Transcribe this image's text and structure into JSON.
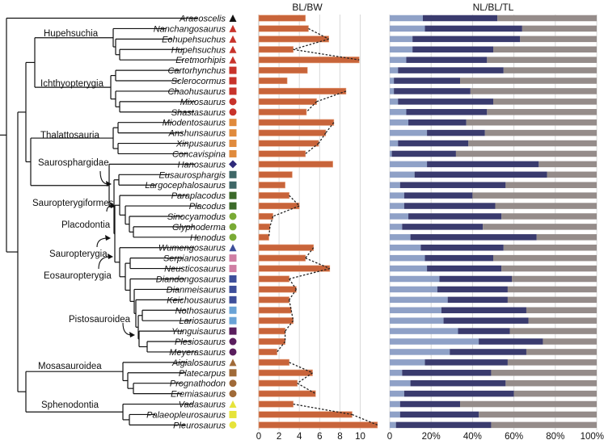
{
  "chart_data": [
    {
      "type": "bar",
      "title": "BL/BW",
      "xlabel": "",
      "ylabel": "",
      "xlim": [
        0,
        11.8
      ],
      "xticks": [
        "0",
        "2",
        "4",
        "6",
        "8",
        "10"
      ],
      "grid": true,
      "bar_color": "#c8643a",
      "connector_style": "dotted line linking sister taxa",
      "categories": [
        "Araeoscelis",
        "Nanchangosaurus",
        "Eohupehsuchus",
        "Hupehsuchus",
        "Eretmorhipis",
        "Cartorhynchus",
        "Sclerocormus",
        "Chaohusaurus",
        "Mixosaurus",
        "Shastasaurus",
        "Miodentosaurus",
        "Anshunsaurus",
        "Xinpusaurus",
        "Concavispina",
        "Hanosaurus",
        "Eusaurosphargis",
        "Largocephalosaurus",
        "Paraplacodus",
        "Placodus",
        "Sinocyamodus",
        "Glyphoderma",
        "Henodus",
        "Wumengosaurus",
        "Serpianosaurus",
        "Neusticosaurus",
        "Diandongosaurus",
        "Dianmeisaurus",
        "Keichousaurus",
        "Nothosaurus",
        "Lariosaurus",
        "Yunguisaurus",
        "Plesiosaurus",
        "Meyerasaurus",
        "Aigialosaurus",
        "Platecarpus",
        "Prognathodon",
        "Eremiasaurus",
        "Vadasaurus",
        "Palaeopleurosaurus",
        "Pleurosaurus"
      ],
      "values": [
        4.6,
        4.9,
        6.9,
        3.4,
        9.9,
        4.8,
        2.8,
        8.6,
        5.7,
        4.7,
        7.4,
        6.6,
        5.9,
        4.6,
        7.3,
        3.3,
        2.6,
        3.0,
        4.0,
        1.4,
        1.1,
        1.0,
        5.4,
        4.6,
        7.0,
        3.0,
        3.7,
        3.0,
        3.2,
        3.4,
        2.6,
        2.6,
        1.8,
        3.0,
        5.3,
        3.8,
        5.6,
        3.4,
        9.2,
        11.7
      ],
      "connectors": [
        [
          1,
          2
        ],
        [
          2,
          3
        ],
        [
          3,
          4
        ],
        [
          7,
          8
        ],
        [
          8,
          9
        ],
        [
          10,
          11
        ],
        [
          11,
          12
        ],
        [
          12,
          13
        ],
        [
          17,
          18
        ],
        [
          18,
          19
        ],
        [
          19,
          20
        ],
        [
          20,
          21
        ],
        [
          22,
          23
        ],
        [
          23,
          24
        ],
        [
          24,
          25
        ],
        [
          25,
          26
        ],
        [
          26,
          27
        ],
        [
          27,
          28
        ],
        [
          28,
          29
        ],
        [
          29,
          30
        ],
        [
          30,
          31
        ],
        [
          31,
          32
        ],
        [
          33,
          34
        ],
        [
          34,
          35
        ],
        [
          35,
          36
        ],
        [
          37,
          38
        ],
        [
          38,
          39
        ]
      ]
    },
    {
      "type": "bar",
      "stacked": true,
      "horizontal": true,
      "title": "NL/BL/TL",
      "xlim": [
        0,
        100
      ],
      "xticks": [
        "0",
        "20%",
        "40%",
        "60%",
        "80%",
        "100%"
      ],
      "grid": true,
      "categories_ref": "same as BL/BW",
      "series": [
        {
          "name": "NL",
          "color": "#8fa1c7",
          "values": [
            16,
            17,
            11,
            11,
            8,
            4,
            2,
            2,
            4,
            8,
            9,
            18,
            4,
            1,
            18,
            12,
            5,
            7,
            7,
            9,
            6,
            10,
            15,
            17,
            18,
            24,
            23,
            28,
            25,
            26,
            33,
            43,
            29,
            17,
            6,
            10,
            7,
            5,
            5,
            3
          ]
        },
        {
          "name": "BL",
          "color": "#3a3b6e",
          "values": [
            36,
            47,
            52,
            39,
            39,
            51,
            32,
            37,
            46,
            39,
            28,
            28,
            34,
            31,
            54,
            64,
            51,
            33,
            44,
            45,
            39,
            61,
            40,
            33,
            36,
            35,
            34,
            29,
            41,
            41,
            25,
            31,
            37,
            40,
            43,
            46,
            53,
            29,
            38,
            46
          ]
        },
        {
          "name": "TL",
          "color": "#958c8a",
          "values": [
            48,
            36,
            37,
            50,
            53,
            45,
            66,
            61,
            50,
            53,
            63,
            54,
            62,
            68,
            28,
            24,
            44,
            60,
            49,
            46,
            55,
            29,
            45,
            50,
            46,
            41,
            43,
            43,
            34,
            33,
            42,
            26,
            34,
            43,
            51,
            44,
            40,
            66,
            57,
            51
          ]
        }
      ]
    }
  ],
  "taxa": [
    {
      "name": "Araeoscelis",
      "symbol": "triangle",
      "color": "#111111"
    },
    {
      "name": "Nanchangosaurus",
      "symbol": "triangle",
      "color": "#c8332b"
    },
    {
      "name": "Eohupehsuchus",
      "symbol": "triangle",
      "color": "#c8332b"
    },
    {
      "name": "Hupehsuchus",
      "symbol": "triangle",
      "color": "#c8332b"
    },
    {
      "name": "Eretmorhipis",
      "symbol": "triangle",
      "color": "#c8332b"
    },
    {
      "name": "Cartorhynchus",
      "symbol": "square",
      "color": "#c8332b"
    },
    {
      "name": "Sclerocormus",
      "symbol": "square",
      "color": "#c8332b"
    },
    {
      "name": "Chaohusaurus",
      "symbol": "square",
      "color": "#c8332b"
    },
    {
      "name": "Mixosaurus",
      "symbol": "circle",
      "color": "#c8332b"
    },
    {
      "name": "Shastasaurus",
      "symbol": "circle",
      "color": "#c8332b"
    },
    {
      "name": "Miodentosaurus",
      "symbol": "square",
      "color": "#e08a3c"
    },
    {
      "name": "Anshunsaurus",
      "symbol": "square",
      "color": "#e08a3c"
    },
    {
      "name": "Xinpusaurus",
      "symbol": "square",
      "color": "#e08a3c"
    },
    {
      "name": "Concavispina",
      "symbol": "square",
      "color": "#e08a3c"
    },
    {
      "name": "Hanosaurus",
      "symbol": "diamond",
      "color": "#2e2a7a"
    },
    {
      "name": "Eusaurosphargis",
      "symbol": "square",
      "color": "#3f6767"
    },
    {
      "name": "Largocephalosaurus",
      "symbol": "square",
      "color": "#3f6767"
    },
    {
      "name": "Paraplacodus",
      "symbol": "square",
      "color": "#3b6a2a"
    },
    {
      "name": "Placodus",
      "symbol": "square",
      "color": "#3b6a2a"
    },
    {
      "name": "Sinocyamodus",
      "symbol": "circle",
      "color": "#79aa35"
    },
    {
      "name": "Glyphoderma",
      "symbol": "circle",
      "color": "#79aa35"
    },
    {
      "name": "Henodus",
      "symbol": "circle",
      "color": "#79aa35"
    },
    {
      "name": "Wumengosaurus",
      "symbol": "triangle",
      "color": "#3e4f9a"
    },
    {
      "name": "Serpianosaurus",
      "symbol": "square",
      "color": "#cf7ea3"
    },
    {
      "name": "Neusticosaurus",
      "symbol": "square",
      "color": "#cf7ea3"
    },
    {
      "name": "Diandongosaurus",
      "symbol": "square",
      "color": "#3e4f9a"
    },
    {
      "name": "Dianmeisaurus",
      "symbol": "square",
      "color": "#3e4f9a"
    },
    {
      "name": "Keichousaurus",
      "symbol": "square",
      "color": "#3e4f9a"
    },
    {
      "name": "Nothosaurus",
      "symbol": "square",
      "color": "#6aa3d6"
    },
    {
      "name": "Lariosaurus",
      "symbol": "square",
      "color": "#6aa3d6"
    },
    {
      "name": "Yunguisaurus",
      "symbol": "square",
      "color": "#5a1e5e"
    },
    {
      "name": "Plesiosaurus",
      "symbol": "circle",
      "color": "#5a1e5e"
    },
    {
      "name": "Meyerasaurus",
      "symbol": "circle",
      "color": "#5a1e5e"
    },
    {
      "name": "Aigialosaurus",
      "symbol": "triangle",
      "color": "#a06a38"
    },
    {
      "name": "Platecarpus",
      "symbol": "square",
      "color": "#a06a38"
    },
    {
      "name": "Prognathodon",
      "symbol": "circle",
      "color": "#a06a38"
    },
    {
      "name": "Eremiasaurus",
      "symbol": "circle",
      "color": "#a06a38"
    },
    {
      "name": "Vadasaurus",
      "symbol": "triangle",
      "color": "#e6e33a"
    },
    {
      "name": "Palaeopleurosaurus",
      "symbol": "square",
      "color": "#e6e33a"
    },
    {
      "name": "Pleurosaurus",
      "symbol": "circle",
      "color": "#e6e33a"
    }
  ],
  "clades": {
    "hupehsuchia": "Hupehsuchia",
    "ichthyopterygia": "Ichthyopterygia",
    "thalattosauria": "Thalattosauria",
    "saurosphargidae": "Saurosphargidae",
    "sauropterygiformes": "Sauropterygiformes",
    "placodontia": "Placodontia",
    "sauropterygia": "Sauropterygia",
    "eosauropterygia": "Eosauropterygia",
    "pistosauroidea": "Pistosauroidea",
    "mosasauroidea": "Mosasauroidea",
    "sphenodontia": "Sphenodontia"
  }
}
